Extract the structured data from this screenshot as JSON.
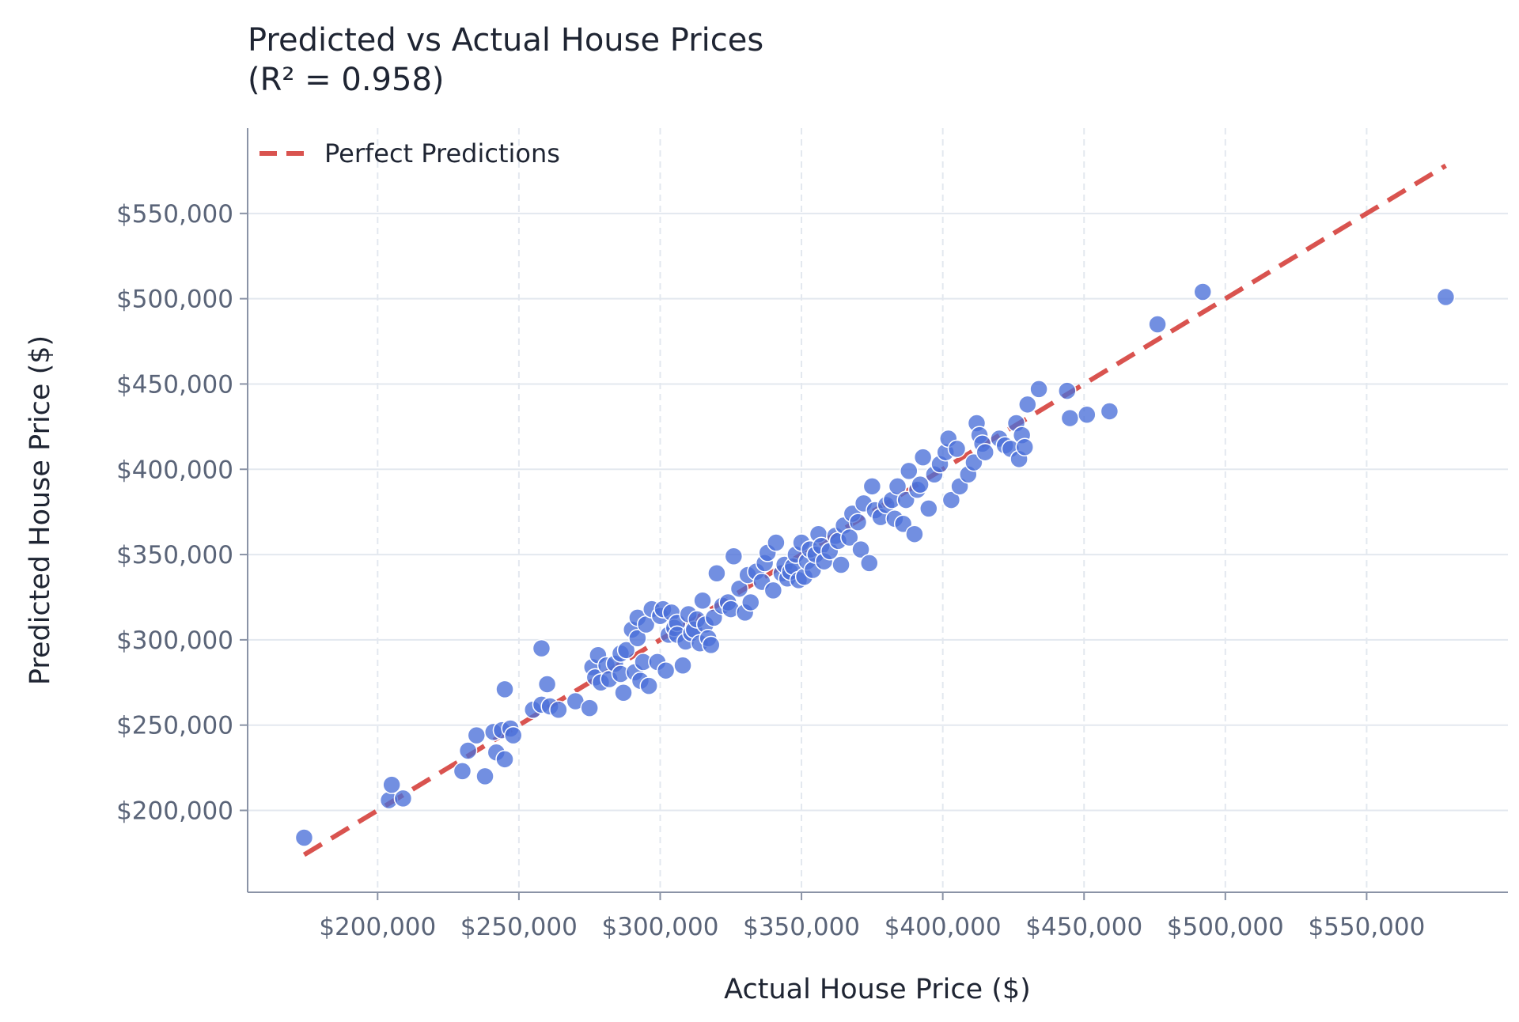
{
  "chart_data": {
    "type": "scatter",
    "title": "Predicted vs Actual House Prices",
    "subtitle": "(R² = 0.958)",
    "xlabel": "Actual House Price ($)",
    "ylabel": "Predicted House Price ($)",
    "xlim": [
      154000,
      600000
    ],
    "ylim": [
      152000,
      600000
    ],
    "x_ticks": [
      200000,
      250000,
      300000,
      350000,
      400000,
      450000,
      500000,
      550000
    ],
    "y_ticks": [
      200000,
      250000,
      300000,
      350000,
      400000,
      450000,
      500000,
      550000
    ],
    "x_tick_labels": [
      "$200,000",
      "$250,000",
      "$300,000",
      "$350,000",
      "$400,000",
      "$450,000",
      "$500,000",
      "$550,000"
    ],
    "y_tick_labels": [
      "$200,000",
      "$250,000",
      "$300,000",
      "$350,000",
      "$400,000",
      "$450,000",
      "$500,000",
      "$550,000"
    ],
    "grid": true,
    "legend": {
      "position": "top-left",
      "entries": [
        "Perfect Predictions"
      ]
    },
    "colors": {
      "points": "#4a6fd8",
      "point_edge": "#ffffff",
      "reference_line": "#d9534f",
      "grid": "#e3e8ef",
      "axis": "#8a93a6"
    },
    "reference_line": {
      "name": "Perfect Predictions",
      "style": "dashed",
      "x": [
        174000,
        578000
      ],
      "y": [
        174000,
        578000
      ]
    },
    "series": [
      {
        "x": [
          174000,
          204000,
          205000,
          209000,
          230000,
          232000,
          235000,
          238000,
          241000,
          242000,
          244000,
          245000,
          245000,
          247000,
          248000,
          255000,
          258000,
          258000,
          260000,
          261000,
          264000,
          270000,
          275000,
          276000,
          277000,
          278000,
          279000,
          281000,
          282000,
          284000,
          286000,
          286000,
          287000,
          288000,
          290000,
          291000,
          292000,
          292000,
          293000,
          294000,
          295000,
          296000,
          297000,
          299000,
          300000,
          301000,
          302000,
          303000,
          304000,
          305000,
          306000,
          306000,
          308000,
          309000,
          310000,
          311000,
          312000,
          313000,
          314000,
          315000,
          316000,
          317000,
          318000,
          319000,
          320000,
          322000,
          324000,
          325000,
          326000,
          328000,
          330000,
          331000,
          332000,
          334000,
          336000,
          337000,
          338000,
          340000,
          341000,
          343000,
          344000,
          345000,
          346000,
          347000,
          348000,
          349000,
          350000,
          351000,
          352000,
          353000,
          354000,
          355000,
          356000,
          357000,
          358000,
          360000,
          362000,
          363000,
          364000,
          365000,
          367000,
          368000,
          370000,
          371000,
          372000,
          374000,
          375000,
          376000,
          378000,
          380000,
          382000,
          383000,
          384000,
          386000,
          387000,
          388000,
          390000,
          391000,
          392000,
          393000,
          395000,
          397000,
          399000,
          401000,
          402000,
          403000,
          405000,
          406000,
          409000,
          411000,
          412000,
          413000,
          414000,
          415000,
          420000,
          422000,
          424000,
          426000,
          427000,
          428000,
          429000,
          430000,
          434000,
          444000,
          445000,
          451000,
          459000,
          476000,
          492000,
          578000
        ],
        "y": [
          184000,
          206000,
          215000,
          207000,
          223000,
          235000,
          244000,
          220000,
          246000,
          234000,
          247000,
          230000,
          271000,
          248000,
          244000,
          259000,
          295000,
          262000,
          274000,
          261000,
          259000,
          264000,
          260000,
          284000,
          278000,
          291000,
          275000,
          285000,
          277000,
          286000,
          280000,
          292000,
          269000,
          294000,
          306000,
          281000,
          301000,
          313000,
          276000,
          287000,
          309000,
          273000,
          318000,
          287000,
          314000,
          318000,
          282000,
          303000,
          316000,
          307000,
          310000,
          303000,
          285000,
          299000,
          315000,
          304000,
          306000,
          312000,
          298000,
          323000,
          309000,
          301000,
          297000,
          313000,
          339000,
          320000,
          322000,
          318000,
          349000,
          330000,
          316000,
          338000,
          322000,
          340000,
          334000,
          345000,
          351000,
          329000,
          357000,
          339000,
          344000,
          336000,
          340000,
          343000,
          350000,
          335000,
          357000,
          337000,
          346000,
          353000,
          341000,
          350000,
          362000,
          355000,
          346000,
          352000,
          361000,
          358000,
          344000,
          367000,
          360000,
          374000,
          369000,
          353000,
          380000,
          345000,
          390000,
          376000,
          372000,
          379000,
          382000,
          371000,
          390000,
          368000,
          382000,
          399000,
          362000,
          388000,
          391000,
          407000,
          377000,
          397000,
          403000,
          410000,
          418000,
          382000,
          412000,
          390000,
          397000,
          404000,
          427000,
          420000,
          415000,
          410000,
          418000,
          414000,
          412000,
          427000,
          406000,
          420000,
          413000,
          438000,
          447000,
          446000,
          430000,
          432000,
          434000,
          485000,
          504000,
          501000
        ]
      }
    ]
  }
}
